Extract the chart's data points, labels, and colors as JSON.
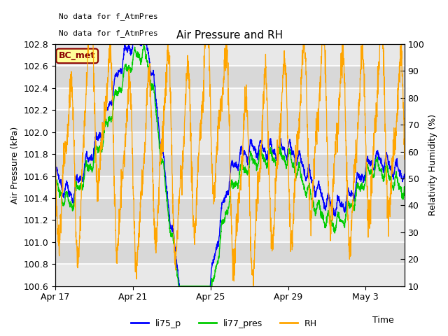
{
  "title": "Air Pressure and RH",
  "xlabel": "Time",
  "ylabel_left": "Air Pressure (kPa)",
  "ylabel_right": "Relativity Humidity (%)",
  "annotation_line1": "No data for f_AtmPres",
  "annotation_line2": "No data for f_AtmPres",
  "bc_met_label": "BC_met",
  "ylim_left": [
    100.6,
    102.8
  ],
  "ylim_right": [
    10,
    100
  ],
  "yticks_left": [
    100.6,
    100.8,
    101.0,
    101.2,
    101.4,
    101.6,
    101.8,
    102.0,
    102.2,
    102.4,
    102.6,
    102.8
  ],
  "yticks_right": [
    10,
    20,
    30,
    40,
    50,
    60,
    70,
    80,
    90,
    100
  ],
  "xtick_labels": [
    "Apr 17",
    "Apr 21",
    "Apr 25",
    "Apr 29",
    "May 3"
  ],
  "xtick_positions": [
    0,
    4,
    8,
    12,
    16
  ],
  "xlim": [
    0,
    18
  ],
  "color_li75": "#0000ff",
  "color_li77": "#00cc00",
  "color_rh": "#ffa500",
  "color_bcmet_bg": "#ffff99",
  "color_bcmet_border": "#8b0000",
  "color_bcmet_text": "#8b0000",
  "plot_bg_color": "#d8d8d8",
  "band_color_light": "#e8e8e8",
  "legend_entries": [
    "li75_p",
    "li77_pres",
    "RH"
  ],
  "seed": 42
}
